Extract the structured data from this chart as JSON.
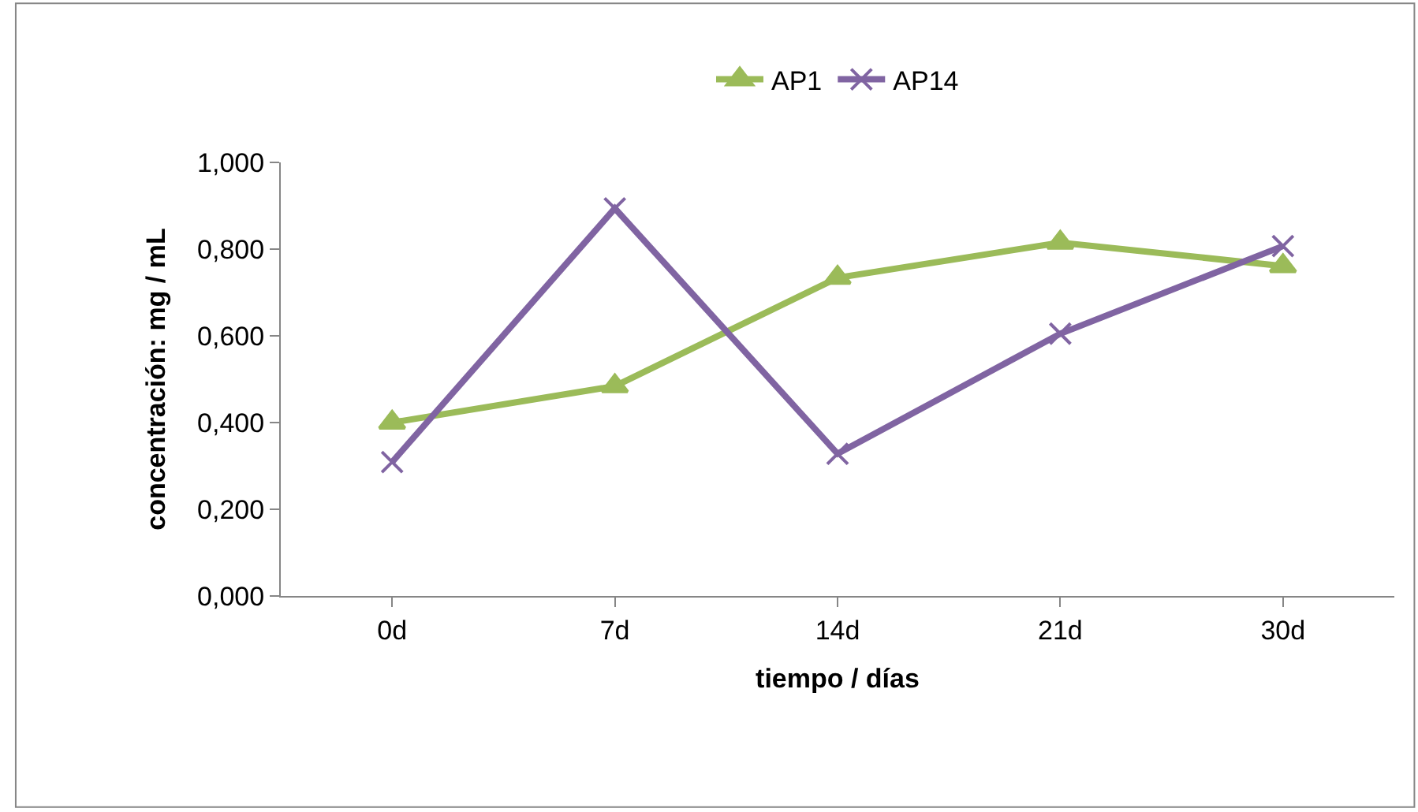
{
  "chart_data": {
    "type": "line",
    "xlabel": "tiempo / días",
    "ylabel": "concentración: mg / mL",
    "categories": [
      "0d",
      "7d",
      "14d",
      "21d",
      "30d"
    ],
    "series": [
      {
        "name": "AP1",
        "color": "#9bbb59",
        "marker": "triangle",
        "values": [
          0.4,
          0.484,
          0.734,
          0.815,
          0.761
        ]
      },
      {
        "name": "AP14",
        "color": "#8064a2",
        "marker": "cross",
        "values": [
          0.309,
          0.894,
          0.328,
          0.605,
          0.807
        ]
      }
    ],
    "ylim": [
      0,
      1
    ],
    "yticks": [
      {
        "value": 0,
        "label": "0,000"
      },
      {
        "value": 0.2,
        "label": "0,200"
      },
      {
        "value": 0.4,
        "label": "0,400"
      },
      {
        "value": 0.6,
        "label": "0,600"
      },
      {
        "value": 0.8,
        "label": "0,800"
      },
      {
        "value": 1,
        "label": "1,000"
      }
    ],
    "legend": "top",
    "line_style": "solid"
  }
}
